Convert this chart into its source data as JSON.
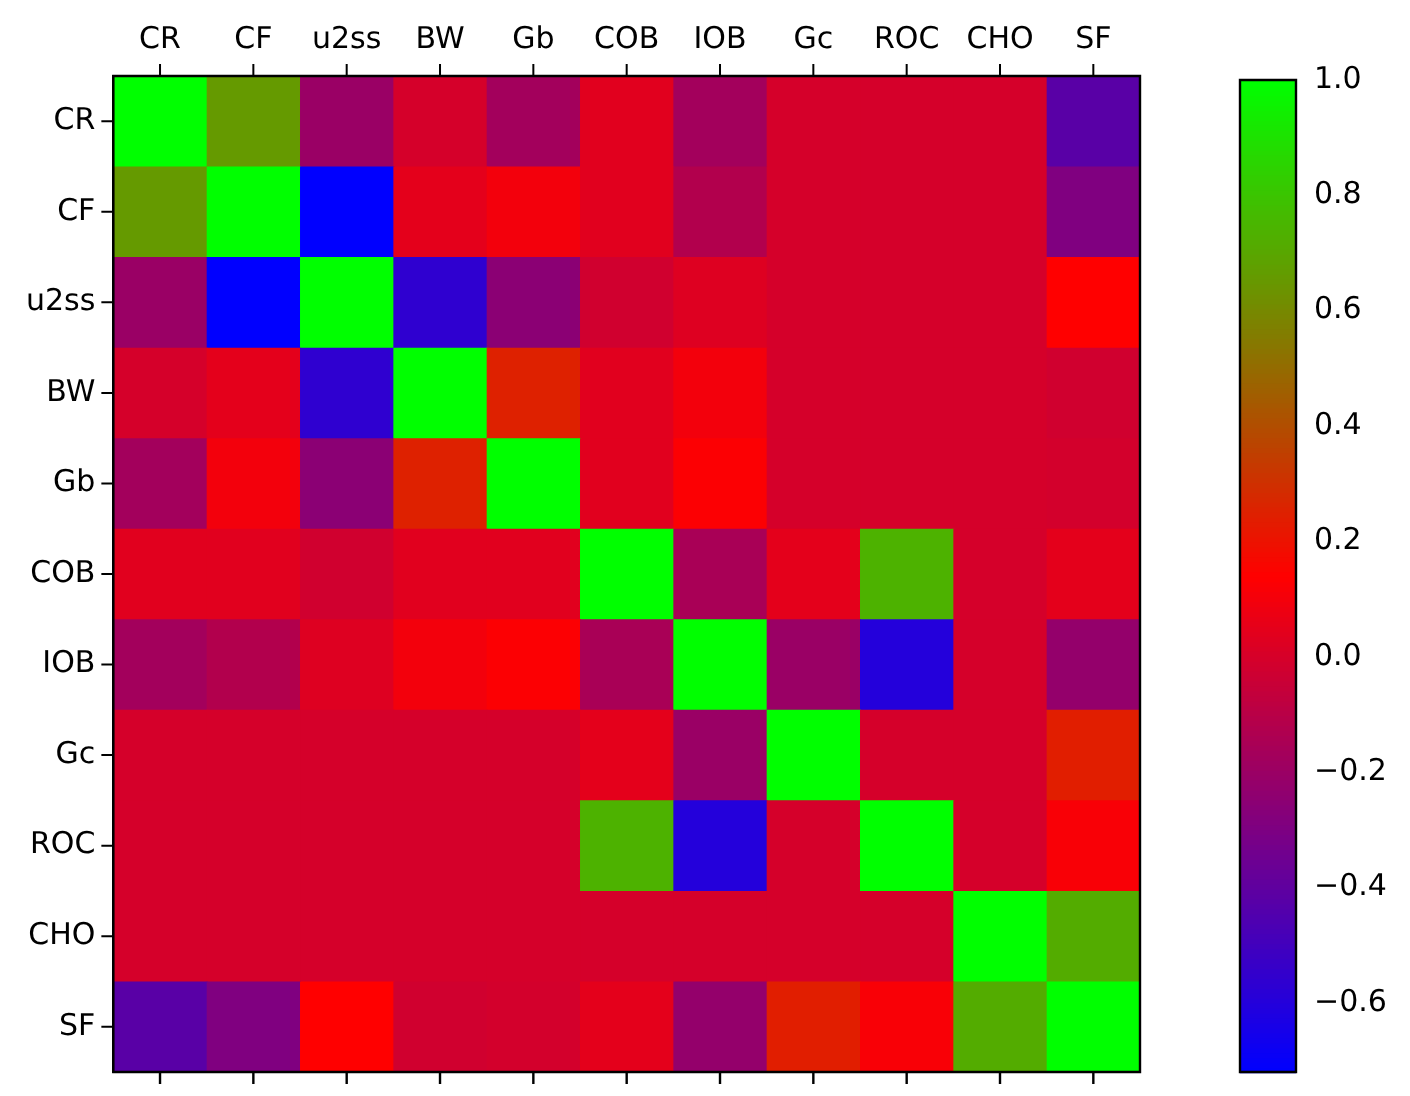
{
  "chart_data": {
    "type": "heatmap",
    "categories": [
      "CR",
      "CF",
      "u2ss",
      "BW",
      "Gb",
      "COB",
      "IOB",
      "Gc",
      "ROC",
      "CHO",
      "SF"
    ],
    "y_categories": [
      "CR",
      "CF",
      "u2ss",
      "BW",
      "Gb",
      "COB",
      "IOB",
      "Gc",
      "ROC",
      "CHO",
      "SF"
    ],
    "cells": [
      [
        1,
        0.66,
        -0.2,
        0.0,
        -0.17,
        0.04,
        -0.17,
        0.0,
        0.0,
        0.0,
        -0.42
      ],
      [
        0.66,
        1,
        -0.72,
        0.05,
        0.1,
        0.04,
        -0.12,
        0.0,
        0.0,
        0.0,
        -0.29
      ],
      [
        -0.2,
        -0.72,
        1,
        -0.56,
        -0.25,
        -0.02,
        0.03,
        0.0,
        0.0,
        0.0,
        0.14
      ],
      [
        0.0,
        0.05,
        -0.56,
        1,
        0.25,
        0.04,
        0.1,
        0.0,
        0.0,
        0.0,
        -0.02
      ],
      [
        -0.17,
        0.1,
        -0.25,
        0.25,
        1,
        0.04,
        0.13,
        0.0,
        0.0,
        0.0,
        -0.01
      ],
      [
        0.04,
        0.04,
        -0.02,
        0.04,
        0.04,
        1,
        -0.15,
        0.05,
        0.74,
        0.0,
        0.05
      ],
      [
        -0.17,
        -0.12,
        0.03,
        0.1,
        0.13,
        -0.15,
        1,
        -0.2,
        -0.6,
        0.0,
        -0.22
      ],
      [
        0.0,
        0.0,
        0.0,
        0.0,
        0.0,
        0.05,
        -0.2,
        1,
        0.0,
        0.0,
        0.24
      ],
      [
        0.0,
        0.0,
        0.0,
        0.0,
        0.0,
        0.74,
        -0.6,
        0.0,
        1,
        0.0,
        0.12
      ],
      [
        0.0,
        0.0,
        0.0,
        0.0,
        0.0,
        0.0,
        0.0,
        0.0,
        0.0,
        1,
        0.72
      ],
      [
        -0.42,
        -0.29,
        0.14,
        -0.02,
        -0.01,
        0.05,
        -0.22,
        0.24,
        0.12,
        0.72,
        1
      ]
    ],
    "clim": [
      -0.72,
      1.0
    ],
    "cticks": [
      {
        "value": -0.6,
        "label": "−0.6"
      },
      {
        "value": -0.4,
        "label": "−0.4"
      },
      {
        "value": -0.2,
        "label": "−0.2"
      },
      {
        "value": 0,
        "label": "0.0"
      },
      {
        "value": 0.2,
        "label": "0.2"
      },
      {
        "value": 0.4,
        "label": "0.4"
      },
      {
        "value": 0.6,
        "label": "0.6"
      },
      {
        "value": 0.8,
        "label": "0.8"
      },
      {
        "value": 1,
        "label": "1.0"
      }
    ]
  }
}
